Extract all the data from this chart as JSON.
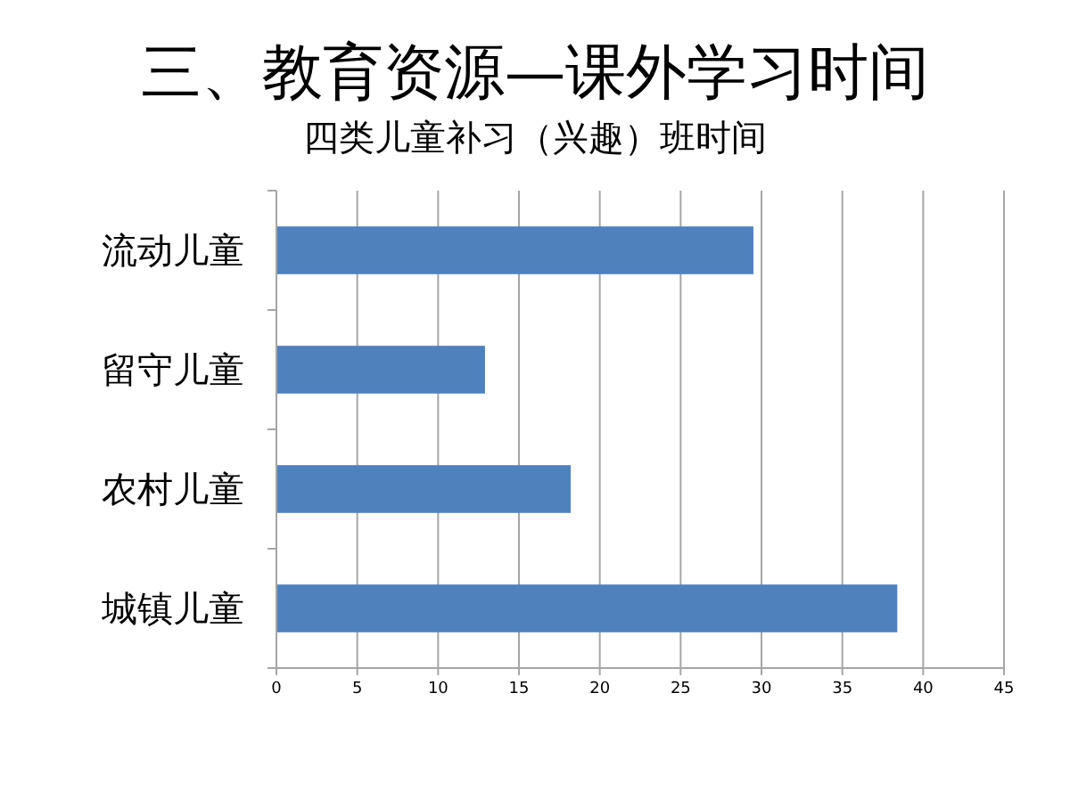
{
  "chart_data": {
    "type": "bar",
    "orientation": "horizontal",
    "title": "三、教育资源—课外学习时间",
    "subtitle": "四类儿童补习（兴趣）班时间",
    "categories": [
      "流动儿童",
      "留守儿童",
      "农村儿童",
      "城镇儿童"
    ],
    "values": [
      29.5,
      12.9,
      18.2,
      38.4
    ],
    "color": "#4f81bd",
    "xlim": [
      0,
      45
    ],
    "xticks": [
      0,
      5,
      10,
      15,
      20,
      25,
      30,
      35,
      40,
      45
    ],
    "grid": "x"
  }
}
